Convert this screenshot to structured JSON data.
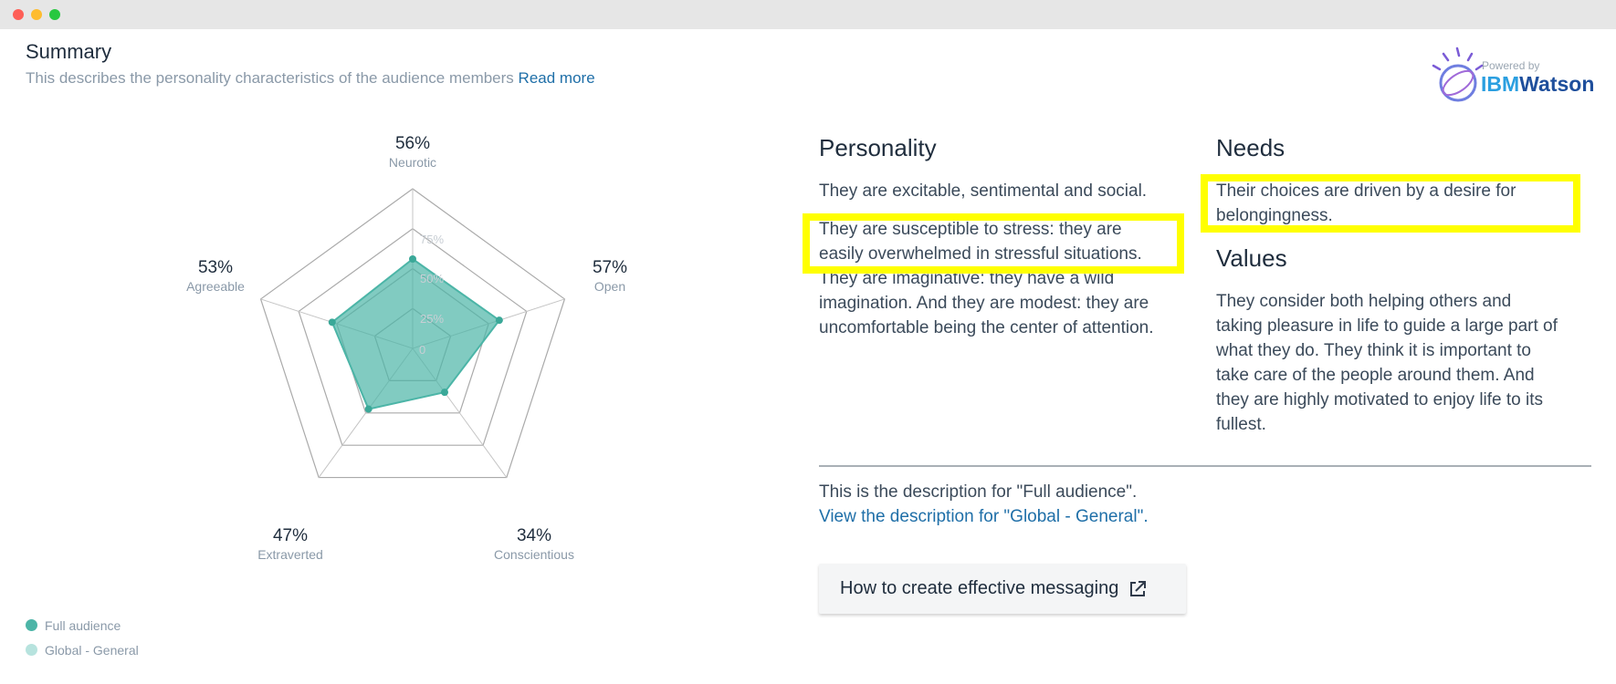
{
  "summary": {
    "title": "Summary",
    "description": "This describes the personality characteristics of the audience members",
    "read_more": "Read more"
  },
  "watson": {
    "powered": "Powered by",
    "ibm": "IBM",
    "watson": "Watson"
  },
  "radar": {
    "ticks": [
      "75%",
      "50%",
      "25%",
      "0"
    ],
    "axes": [
      {
        "label": "Neurotic",
        "pct": "56%"
      },
      {
        "label": "Open",
        "pct": "57%"
      },
      {
        "label": "Conscientious",
        "pct": "34%"
      },
      {
        "label": "Extraverted",
        "pct": "47%"
      },
      {
        "label": "Agreeable",
        "pct": "53%"
      }
    ]
  },
  "legend": [
    {
      "label": "Full audience",
      "color": "#4cb5a7"
    },
    {
      "label": "Global - General",
      "color": "#b7e3de"
    }
  ],
  "personality": {
    "heading": "Personality",
    "p1": "They are excitable, sentimental and social.",
    "p2_line1": "They are susceptible to stress: they are",
    "p2_line2": "easily overwhelmed in stressful situations.",
    "p3_line1": "They are imaginative: they have a wild",
    "p3_line2": "imagination. And they are modest: they are",
    "p3_line3": "uncomfortable being the center of attention."
  },
  "needs": {
    "heading": "Needs",
    "line1": "Their choices are driven by a desire for",
    "line2": "belongingness."
  },
  "values": {
    "heading": "Values",
    "line1": "They consider both helping others and",
    "line2": "taking pleasure in life to guide a large part of",
    "line3": "what they do. They think it is important to",
    "line4": "take care of the people around them. And",
    "line5": "they are highly motivated to enjoy life to its",
    "line6": "fullest."
  },
  "footer": {
    "desc": "This is the description for \"Full audience\".",
    "link": "View the description for \"Global - General\".",
    "cta": "How to create effective messaging"
  },
  "colors": {
    "accent": "#4cb5a7",
    "highlight": "#ffff00",
    "link": "#1f6fa8"
  }
}
